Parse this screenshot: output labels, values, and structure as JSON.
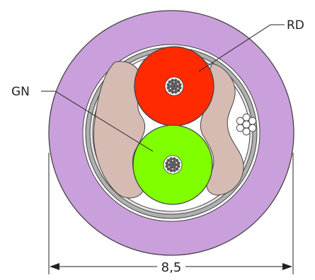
{
  "labels": {
    "red_core": "RD",
    "green_core": "GN",
    "dimension": "8,5"
  },
  "colors": {
    "jacket": "#C9A0DC",
    "shield": "#B0B0B0",
    "red_core": "#FF2A00",
    "green_core": "#80FF00",
    "filler": "#D6BBB3",
    "conductor": "#555555"
  }
}
